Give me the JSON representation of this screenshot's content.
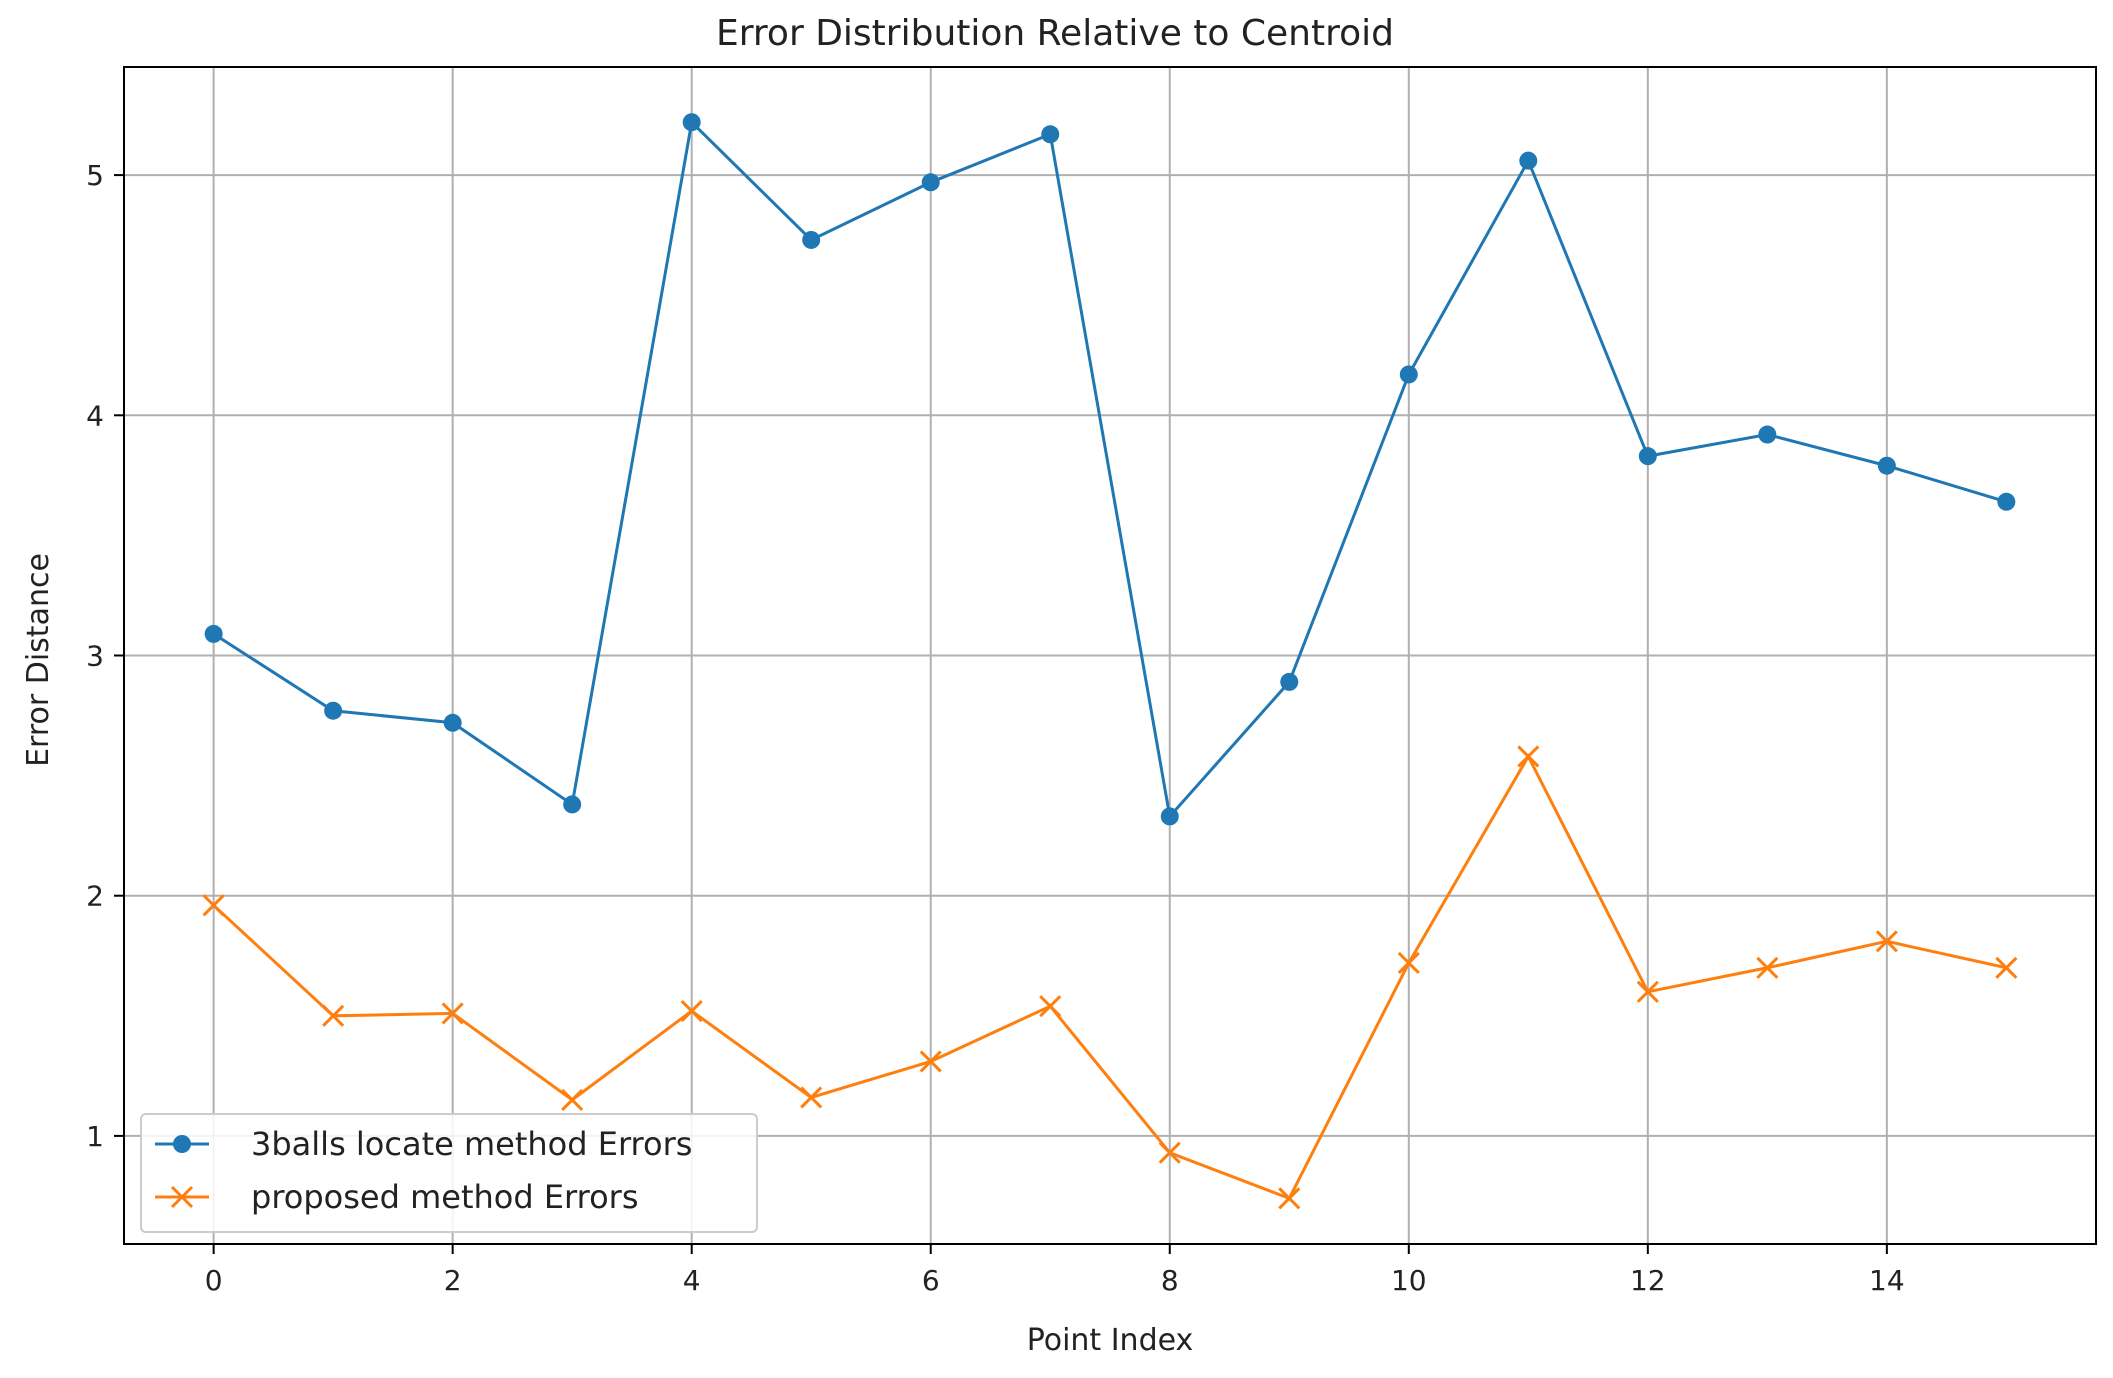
{
  "chart_data": {
    "type": "line",
    "title": "Error Distribution Relative to Centroid",
    "xlabel": "Point Index",
    "ylabel": "Error Distance",
    "x": [
      0,
      1,
      2,
      3,
      4,
      5,
      6,
      7,
      8,
      9,
      10,
      11,
      12,
      13,
      14,
      15
    ],
    "xlim": [
      -0.75,
      15.75
    ],
    "ylim": [
      0.55,
      5.45
    ],
    "xticks": [
      0,
      2,
      4,
      6,
      8,
      10,
      12,
      14
    ],
    "yticks": [
      1,
      2,
      3,
      4,
      5
    ],
    "grid": true,
    "legend_position": "lower-left",
    "series": [
      {
        "name": "3balls locate method Errors",
        "color": "#1f77b4",
        "marker": "circle",
        "values": [
          3.09,
          2.77,
          2.72,
          2.38,
          5.22,
          4.73,
          4.97,
          5.17,
          2.33,
          2.89,
          4.17,
          5.06,
          3.83,
          3.92,
          3.79,
          3.64
        ]
      },
      {
        "name": "proposed method Errors",
        "color": "#ff7f0e",
        "marker": "x",
        "values": [
          1.96,
          1.5,
          1.51,
          1.15,
          1.52,
          1.16,
          1.31,
          1.54,
          0.93,
          0.74,
          1.72,
          2.58,
          1.6,
          1.7,
          1.81,
          1.7
        ]
      }
    ]
  }
}
